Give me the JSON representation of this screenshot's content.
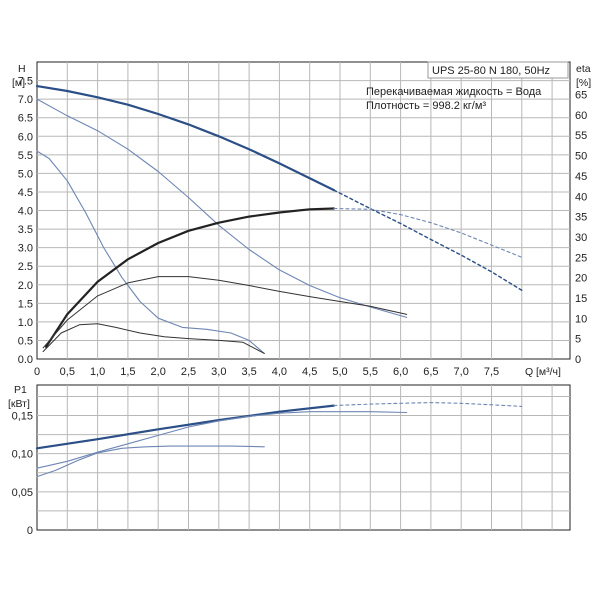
{
  "chart_data": [
    {
      "type": "line",
      "title": "UPS 25-80 N 180, 50Hz",
      "info_lines": [
        "Перекачиваемая жидкость = Вода",
        "Плотность = 998.2 кг/м³"
      ],
      "ylabel": "H",
      "yunit": "[м]",
      "ylabel_right": "eta",
      "yunit_right": "[%]",
      "xlabel": "Q",
      "xunit": "[м³/ч]",
      "xlim": [
        0,
        8.5
      ],
      "ylim": [
        0,
        8.0
      ],
      "ylim_right": [
        0,
        73
      ],
      "grid": true,
      "x_ticks": [
        "0",
        "0,5",
        "1,0",
        "1,5",
        "2,0",
        "2,5",
        "3,0",
        "3,5",
        "4,0",
        "4,5",
        "5,0",
        "5,5",
        "6,0",
        "6,5",
        "7,0",
        "7,5"
      ],
      "y_ticks": [
        "0.0",
        "0.5",
        "1.0",
        "1.5",
        "2.0",
        "2.5",
        "3.0",
        "3.5",
        "4.0",
        "4.5",
        "5.0",
        "5.5",
        "6.0",
        "6.5",
        "7.0",
        "7.5"
      ],
      "y_right_ticks": [
        "0",
        "5",
        "10",
        "15",
        "20",
        "25",
        "30",
        "35",
        "40",
        "45",
        "50",
        "55",
        "60",
        "65"
      ],
      "series": [
        {
          "axis": "H",
          "style": "thick-blue",
          "x": [
            0,
            0.5,
            1,
            1.5,
            2,
            2.5,
            3,
            3.5,
            4,
            4.5,
            4.9
          ],
          "y": [
            7.35,
            7.22,
            7.05,
            6.85,
            6.6,
            6.32,
            6.0,
            5.65,
            5.27,
            4.87,
            4.55
          ]
        },
        {
          "axis": "H",
          "style": "thick-blue-dashed",
          "x": [
            4.9,
            5.5,
            6,
            6.5,
            7,
            7.5,
            8.0
          ],
          "y": [
            4.55,
            4.05,
            3.65,
            3.22,
            2.8,
            2.35,
            1.85
          ]
        },
        {
          "axis": "H",
          "style": "thin-blue",
          "x": [
            0,
            0.5,
            1,
            1.5,
            2,
            2.5,
            3,
            3.5,
            4,
            4.5,
            5,
            5.5,
            6.1
          ],
          "y": [
            7.0,
            6.55,
            6.15,
            5.65,
            5.05,
            4.35,
            3.6,
            2.95,
            2.4,
            1.98,
            1.65,
            1.4,
            1.12
          ]
        },
        {
          "axis": "H",
          "style": "thin-blue",
          "x": [
            0,
            0.2,
            0.5,
            0.8,
            1.1,
            1.4,
            1.7,
            2.0,
            2.4,
            2.8,
            3.2,
            3.5,
            3.75
          ],
          "y": [
            5.6,
            5.4,
            4.8,
            3.95,
            3.0,
            2.2,
            1.55,
            1.1,
            0.85,
            0.8,
            0.7,
            0.5,
            0.15
          ]
        },
        {
          "axis": "eta",
          "style": "thick-black",
          "x": [
            0.15,
            0.5,
            1,
            1.5,
            2,
            2.5,
            3,
            3.5,
            4,
            4.5,
            4.9
          ],
          "y": [
            3,
            11,
            19,
            24.5,
            28.5,
            31.5,
            33.5,
            35,
            36,
            36.8,
            37
          ]
        },
        {
          "axis": "eta",
          "style": "thin-blue-dashed",
          "x": [
            4.9,
            5.5,
            6,
            6.5,
            7,
            7.5,
            8.0
          ],
          "y": [
            37,
            36.8,
            35.5,
            33.5,
            31,
            28,
            25
          ]
        },
        {
          "axis": "H",
          "style": "thin-dark",
          "x": [
            0.1,
            0.5,
            1,
            1.5,
            2,
            2.5,
            3,
            3.5,
            4,
            4.5,
            5,
            5.5,
            6.1
          ],
          "y": [
            0.3,
            1.05,
            1.7,
            2.05,
            2.22,
            2.22,
            2.12,
            1.98,
            1.82,
            1.68,
            1.55,
            1.42,
            1.2
          ]
        },
        {
          "axis": "H",
          "style": "thin-dark",
          "x": [
            0.1,
            0.4,
            0.7,
            1.0,
            1.3,
            1.7,
            2.1,
            2.5,
            3.0,
            3.4,
            3.75
          ],
          "y": [
            0.2,
            0.7,
            0.92,
            0.95,
            0.85,
            0.7,
            0.6,
            0.55,
            0.5,
            0.45,
            0.15
          ]
        }
      ]
    },
    {
      "type": "line",
      "ylabel": "P1",
      "yunit": "[кВт]",
      "xlim": [
        0,
        8.5
      ],
      "ylim": [
        0,
        0.19
      ],
      "grid": true,
      "y_ticks": [
        "0",
        "0,05",
        "0,10",
        "0,15"
      ],
      "series": [
        {
          "style": "thick-blue",
          "x": [
            0,
            1,
            2,
            3,
            4,
            4.9
          ],
          "y": [
            0.107,
            0.119,
            0.132,
            0.144,
            0.155,
            0.163
          ]
        },
        {
          "style": "thin-blue-dashed",
          "x": [
            4.9,
            5.5,
            6,
            6.5,
            7,
            7.5,
            8.0
          ],
          "y": [
            0.163,
            0.165,
            0.166,
            0.167,
            0.166,
            0.164,
            0.162
          ]
        },
        {
          "style": "thin-blue",
          "x": [
            0,
            0.5,
            1,
            1.5,
            2,
            2.5,
            3,
            3.5,
            4,
            4.5,
            5,
            5.5,
            6.1
          ],
          "y": [
            0.081,
            0.09,
            0.102,
            0.113,
            0.124,
            0.135,
            0.143,
            0.149,
            0.153,
            0.155,
            0.155,
            0.155,
            0.154
          ]
        },
        {
          "style": "thin-blue",
          "x": [
            0,
            0.3,
            0.7,
            1.0,
            1.4,
            1.8,
            2.2,
            2.7,
            3.2,
            3.75
          ],
          "y": [
            0.07,
            0.078,
            0.092,
            0.101,
            0.107,
            0.109,
            0.11,
            0.11,
            0.11,
            0.109
          ]
        }
      ]
    }
  ],
  "colors": {
    "thick_blue": "#2b4f86",
    "thin_blue": "#6e86b4",
    "thick_black": "#222222",
    "thin_dark": "#333333",
    "grid": "#b8b8b8",
    "axis": "#222222"
  }
}
